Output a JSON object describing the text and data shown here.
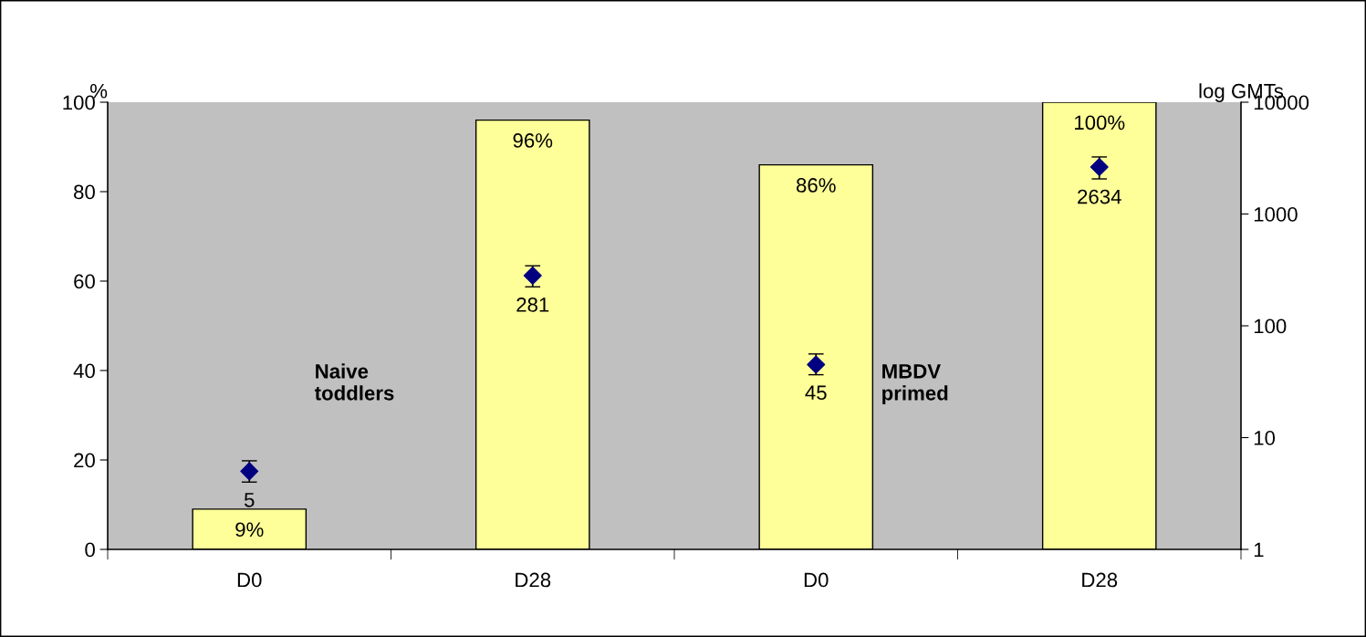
{
  "chart_data": {
    "type": "bar",
    "categories": [
      "D0",
      "D28",
      "D0",
      "D28"
    ],
    "ylabel": "%",
    "y2label": "log GMTs",
    "ylim": [
      0,
      100
    ],
    "yticks": [
      0,
      20,
      40,
      60,
      80,
      100
    ],
    "y2lim": [
      1,
      10000
    ],
    "y2ticks": [
      1,
      10,
      100,
      1000,
      10000
    ],
    "log": "y2",
    "grid": false,
    "legend": false,
    "series": [
      {
        "color": "#ffff99",
        "values": [
          9,
          96,
          86,
          100
        ],
        "value_labels": [
          "9%",
          "96%",
          "86%",
          "100%"
        ]
      },
      {
        "type": "scatter",
        "axis": "y2",
        "color": "#000080",
        "marker": "diamond",
        "values": [
          5,
          281,
          45,
          2634
        ],
        "errors": [
          [
            4.0,
            6.2
          ],
          [
            223,
            344
          ],
          [
            36.5,
            56
          ],
          [
            2061,
            3240
          ]
        ],
        "value_labels": [
          "5",
          "281",
          "45",
          "2634"
        ]
      }
    ],
    "annotations": [
      "Naive\ntoddlers",
      "MBDV\nprimed"
    ]
  }
}
